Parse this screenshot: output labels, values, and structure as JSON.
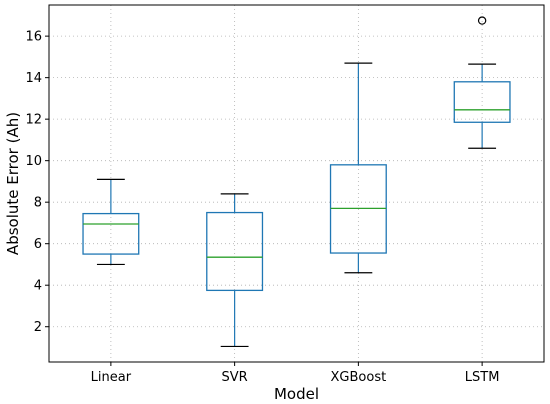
{
  "chart_data": {
    "type": "box",
    "xlabel": "Model",
    "ylabel": "Absolute Error (Ah)",
    "ylim": [
      0.3,
      17.5
    ],
    "yticks": [
      2,
      4,
      6,
      8,
      10,
      12,
      14,
      16
    ],
    "ytick_labels": [
      "2",
      "4",
      "6",
      "8",
      "10",
      "12",
      "14",
      "16"
    ],
    "grid": true,
    "categories": [
      "Linear",
      "SVR",
      "XGBoost",
      "LSTM"
    ],
    "boxes": [
      {
        "category": "Linear",
        "whisker_low": 5.0,
        "q1": 5.5,
        "median": 6.95,
        "q3": 7.45,
        "whisker_high": 9.1,
        "outliers": []
      },
      {
        "category": "SVR",
        "whisker_low": 1.05,
        "q1": 3.75,
        "median": 5.35,
        "q3": 7.5,
        "whisker_high": 8.4,
        "outliers": []
      },
      {
        "category": "XGBoost",
        "whisker_low": 4.6,
        "q1": 5.55,
        "median": 7.7,
        "q3": 9.8,
        "whisker_high": 14.7,
        "outliers": []
      },
      {
        "category": "LSTM",
        "whisker_low": 10.6,
        "q1": 11.85,
        "median": 12.45,
        "q3": 13.8,
        "whisker_high": 14.65,
        "outliers": [
          16.75
        ]
      }
    ],
    "colors": {
      "box": "#1f77b4",
      "median": "#2ca02c",
      "whisker": "#1f77b4",
      "cap": "#000000",
      "grid": "#b0b0b0"
    }
  }
}
